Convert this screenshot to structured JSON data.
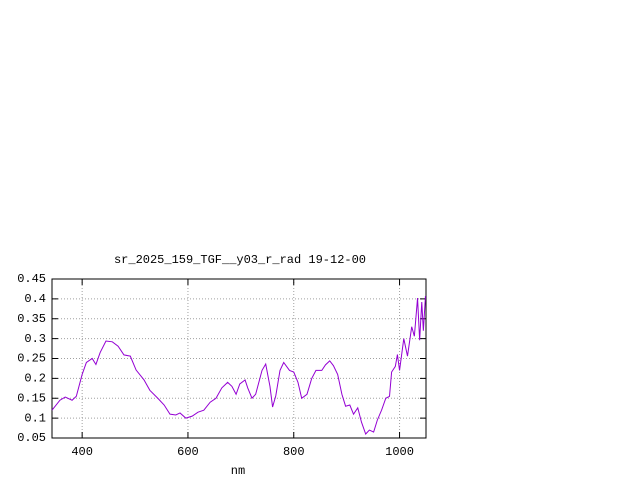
{
  "chart_data": {
    "type": "line",
    "title": "sr_2025_159_TGF__y03_r_rad 19-12-00",
    "x_label": "nm",
    "x": [
      343,
      358,
      368,
      381,
      389,
      400,
      408,
      419,
      426,
      434,
      445,
      457,
      468,
      479,
      491,
      502,
      517,
      528,
      543,
      555,
      566,
      577,
      585,
      596,
      608,
      619,
      630,
      642,
      653,
      664,
      675,
      683,
      691,
      698,
      708,
      713,
      721,
      728,
      740,
      747,
      755,
      760,
      766,
      774,
      781,
      792,
      800,
      808,
      815,
      825,
      834,
      842,
      853,
      860,
      868,
      875,
      883,
      891,
      898,
      906,
      913,
      921,
      928,
      936,
      943,
      951,
      958,
      966,
      974,
      981,
      985,
      992,
      996,
      1000,
      1008,
      1015,
      1023,
      1028,
      1034,
      1038,
      1042,
      1045,
      1049
    ],
    "series": [
      {
        "color": "#9400d3",
        "values": [
          0.12,
          0.145,
          0.153,
          0.145,
          0.155,
          0.21,
          0.24,
          0.25,
          0.235,
          0.265,
          0.294,
          0.292,
          0.281,
          0.259,
          0.256,
          0.221,
          0.196,
          0.17,
          0.15,
          0.133,
          0.11,
          0.108,
          0.113,
          0.1,
          0.105,
          0.115,
          0.12,
          0.14,
          0.15,
          0.176,
          0.19,
          0.18,
          0.16,
          0.186,
          0.196,
          0.176,
          0.15,
          0.16,
          0.22,
          0.236,
          0.18,
          0.128,
          0.156,
          0.22,
          0.24,
          0.22,
          0.216,
          0.19,
          0.15,
          0.16,
          0.2,
          0.22,
          0.22,
          0.234,
          0.244,
          0.232,
          0.21,
          0.16,
          0.13,
          0.133,
          0.11,
          0.126,
          0.09,
          0.06,
          0.07,
          0.065,
          0.095,
          0.12,
          0.15,
          0.155,
          0.216,
          0.23,
          0.26,
          0.22,
          0.3,
          0.256,
          0.33,
          0.306,
          0.402,
          0.296,
          0.392,
          0.32,
          0.407
        ]
      }
    ],
    "xlim": [
      343,
      1050
    ],
    "xticks": [
      400,
      600,
      800,
      1000
    ],
    "ylim": [
      0.05,
      0.45
    ],
    "yticks": [
      0.05,
      0.1,
      0.15,
      0.2,
      0.25,
      0.3,
      0.35,
      0.4,
      0.45
    ],
    "grid": true
  }
}
